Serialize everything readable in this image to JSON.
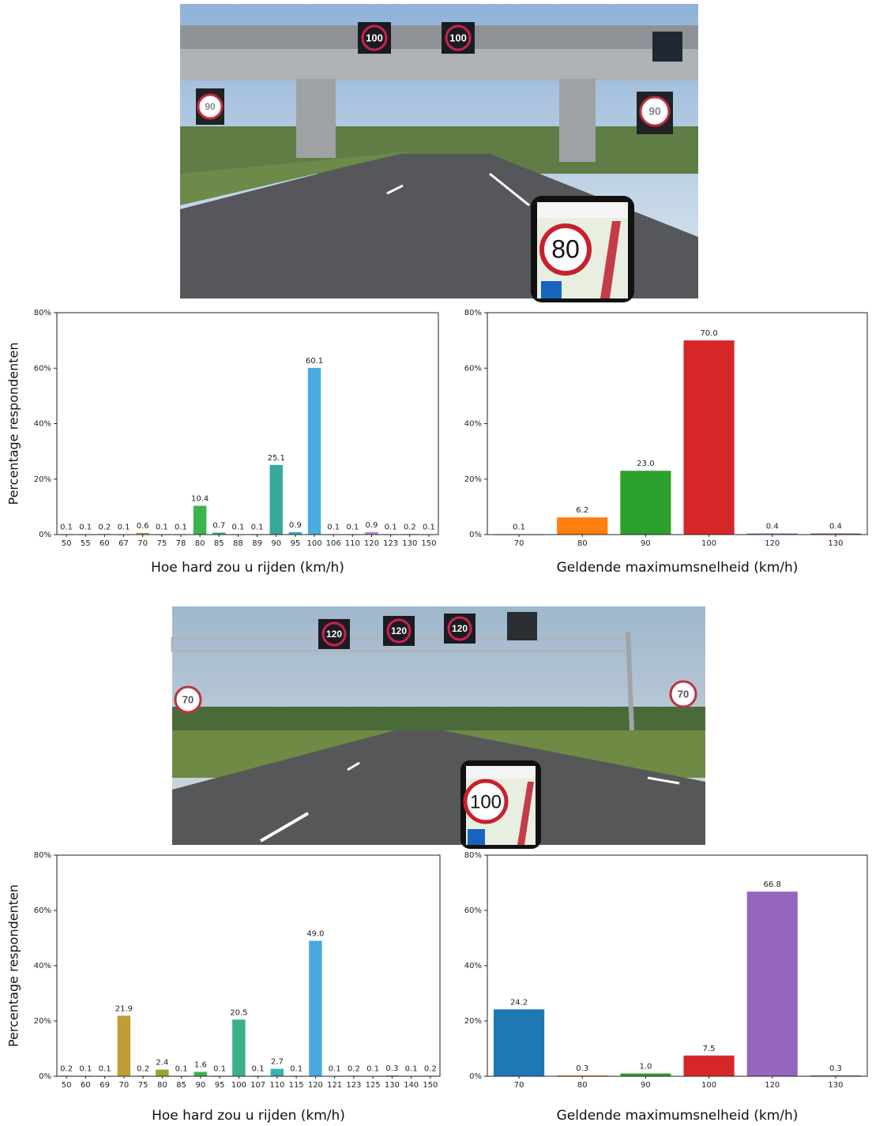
{
  "photos": [
    {
      "gantry_signs": [
        "100",
        "100"
      ],
      "roadside_signs": [
        "90",
        "90"
      ],
      "phone_sign": "80"
    },
    {
      "gantry_signs": [
        "120",
        "120",
        "120"
      ],
      "roadside_signs": [
        "70",
        "70"
      ],
      "phone_sign": "100"
    }
  ],
  "chart_data": [
    {
      "type": "bar",
      "ylabel": "Percentage respondenten",
      "xlabel": "Hoe hard zou u rijden (km/h)",
      "categories": [
        "50",
        "55",
        "60",
        "67",
        "70",
        "75",
        "78",
        "80",
        "85",
        "88",
        "89",
        "90",
        "95",
        "100",
        "106",
        "110",
        "120",
        "123",
        "130",
        "150"
      ],
      "values": [
        0.1,
        0.1,
        0.2,
        0.1,
        0.6,
        0.1,
        0.1,
        10.4,
        0.7,
        0.1,
        0.1,
        25.1,
        0.9,
        60.1,
        0.1,
        0.1,
        0.9,
        0.1,
        0.2,
        0.1
      ],
      "colors": [
        "#d9534f",
        "#d9604a",
        "#d87040",
        "#d08030",
        "#c89030",
        "#b8a030",
        "#a8a830",
        "#3cb44b",
        "#3cb070",
        "#3cb080",
        "#3cb090",
        "#35a99a",
        "#3ab0b8",
        "#4aace0",
        "#7aa0e0",
        "#9a90e0",
        "#c080d8",
        "#d078c0",
        "#e070a8",
        "#e06890"
      ],
      "ylim": [
        0,
        80
      ],
      "yticks": [
        {
          "value": 0,
          "label": "0%"
        },
        {
          "value": 20,
          "label": "20%"
        },
        {
          "value": 40,
          "label": "40%"
        },
        {
          "value": 60,
          "label": "60%"
        },
        {
          "value": 80,
          "label": "80%"
        }
      ]
    },
    {
      "type": "bar",
      "xlabel": "Geldende maximumsnelheid (km/h)",
      "categories": [
        "70",
        "80",
        "90",
        "100",
        "120",
        "130"
      ],
      "values": [
        0.1,
        6.2,
        23.0,
        70.0,
        0.4,
        0.4
      ],
      "value_labels": [
        "0.1",
        "6.2",
        "23.0",
        "70.0",
        "0.4",
        "0.4"
      ],
      "colors": [
        "#1f77b4",
        "#ff7f0e",
        "#2ca02c",
        "#d62728",
        "#9467bd",
        "#8c564b"
      ],
      "ylim": [
        0,
        80
      ],
      "yticks": [
        {
          "value": 0,
          "label": "0%"
        },
        {
          "value": 20,
          "label": "20%"
        },
        {
          "value": 40,
          "label": "40%"
        },
        {
          "value": 60,
          "label": "60%"
        },
        {
          "value": 80,
          "label": "80%"
        }
      ]
    },
    {
      "type": "bar",
      "ylabel": "Percentage respondenten",
      "xlabel": "Hoe hard zou u rijden (km/h)",
      "categories": [
        "50",
        "60",
        "69",
        "70",
        "75",
        "80",
        "85",
        "90",
        "95",
        "100",
        "107",
        "110",
        "115",
        "120",
        "121",
        "123",
        "125",
        "130",
        "140",
        "150"
      ],
      "values": [
        0.2,
        0.1,
        0.1,
        21.9,
        0.2,
        2.4,
        0.1,
        1.6,
        0.1,
        20.5,
        0.1,
        2.7,
        0.1,
        49.0,
        0.1,
        0.2,
        0.1,
        0.3,
        0.1,
        0.2
      ],
      "value_labels": [
        "0.2",
        "0.1",
        "0.1",
        "21.9",
        "0.2",
        "2.4",
        "0.1",
        "1.6",
        "0.1",
        "20.5",
        "0.1",
        "2.7",
        "0.1",
        "49.0",
        "0.1",
        "0.2",
        "0.1",
        "0.3",
        "0.1",
        "0.2"
      ],
      "colors": [
        "#d9534f",
        "#d87040",
        "#c89030",
        "#bf9f35",
        "#b0a030",
        "#a0a030",
        "#70b040",
        "#40b050",
        "#3cb070",
        "#3cb08a",
        "#3ab0a0",
        "#3ab0b0",
        "#40acc8",
        "#4aa8e0",
        "#7aa0e0",
        "#9a90e0",
        "#c080d8",
        "#d078c0",
        "#e070a8",
        "#e06890"
      ],
      "ylim": [
        0,
        80
      ],
      "yticks": [
        {
          "value": 0,
          "label": "0%"
        },
        {
          "value": 20,
          "label": "20%"
        },
        {
          "value": 40,
          "label": "40%"
        },
        {
          "value": 60,
          "label": "60%"
        },
        {
          "value": 80,
          "label": "80%"
        }
      ]
    },
    {
      "type": "bar",
      "xlabel": "Geldende maximumsnelheid (km/h)",
      "categories": [
        "70",
        "80",
        "90",
        "100",
        "120",
        "130"
      ],
      "values": [
        24.2,
        0.3,
        1.0,
        7.5,
        66.8,
        0.3
      ],
      "value_labels": [
        "24.2",
        "0.3",
        "1.0",
        "7.5",
        "66.8",
        "0.3"
      ],
      "colors": [
        "#1f77b4",
        "#ff7f0e",
        "#2ca02c",
        "#d62728",
        "#9467bd",
        "#8c564b"
      ],
      "ylim": [
        0,
        80
      ],
      "yticks": [
        {
          "value": 0,
          "label": "0%"
        },
        {
          "value": 20,
          "label": "20%"
        },
        {
          "value": 40,
          "label": "40%"
        },
        {
          "value": 60,
          "label": "60%"
        },
        {
          "value": 80,
          "label": "80%"
        }
      ]
    }
  ]
}
